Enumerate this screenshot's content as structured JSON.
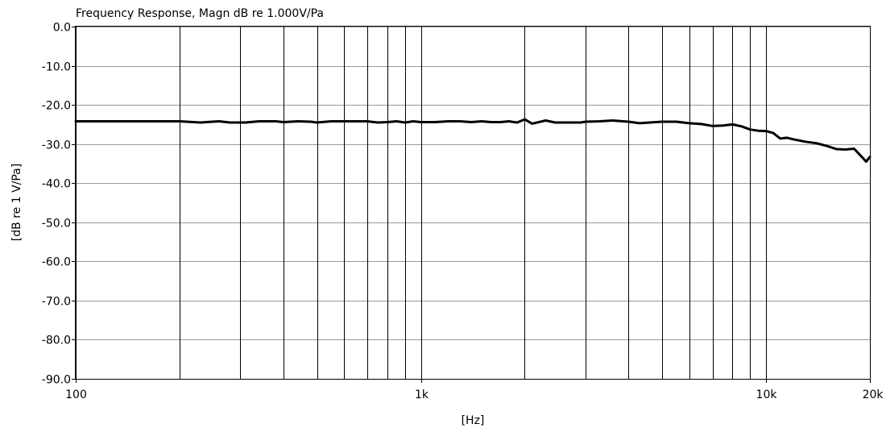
{
  "chart_data": {
    "type": "line",
    "title": "Frequency Response, Magn dB re 1.000V/Pa",
    "xlabel": "[Hz]",
    "ylabel": "[dB re 1 V/Pa]",
    "x_scale": "log",
    "xlim": [
      100,
      20000
    ],
    "ylim": [
      -90,
      0
    ],
    "grid": true,
    "x_ticks": [
      {
        "value": 100,
        "label": "100"
      },
      {
        "value": 1000,
        "label": "1k"
      },
      {
        "value": 10000,
        "label": "10k"
      },
      {
        "value": 20000,
        "label": "20k"
      }
    ],
    "x_minor": [
      200,
      300,
      400,
      500,
      600,
      700,
      800,
      900,
      2000,
      3000,
      4000,
      5000,
      6000,
      7000,
      8000,
      9000
    ],
    "y_ticks": [
      {
        "value": 0,
        "label": "0.0"
      },
      {
        "value": -10,
        "label": "-10.0"
      },
      {
        "value": -20,
        "label": "-20.0"
      },
      {
        "value": -30,
        "label": "-30.0"
      },
      {
        "value": -40,
        "label": "-40.0"
      },
      {
        "value": -50,
        "label": "-50.0"
      },
      {
        "value": -60,
        "label": "-60.0"
      },
      {
        "value": -70,
        "label": "-70.0"
      },
      {
        "value": -80,
        "label": "-80.0"
      },
      {
        "value": -90,
        "label": "-90.0"
      }
    ],
    "series": [
      {
        "color": "#000000",
        "x": [
          100,
          150,
          200,
          230,
          260,
          280,
          310,
          340,
          380,
          400,
          440,
          480,
          500,
          550,
          600,
          650,
          700,
          750,
          800,
          850,
          900,
          950,
          1000,
          1100,
          1200,
          1300,
          1400,
          1500,
          1600,
          1700,
          1800,
          1900,
          2000,
          2100,
          2300,
          2450,
          2600,
          2900,
          3000,
          3300,
          3600,
          4000,
          4300,
          4600,
          5000,
          5500,
          6000,
          6500,
          7000,
          7500,
          8000,
          8500,
          9000,
          9500,
          10000,
          10500,
          11000,
          11500,
          12000,
          13000,
          14000,
          15000,
          16000,
          17000,
          18000,
          19000,
          19500,
          20000
        ],
        "y": [
          -24.2,
          -24.2,
          -24.2,
          -24.5,
          -24.2,
          -24.5,
          -24.5,
          -24.2,
          -24.2,
          -24.4,
          -24.2,
          -24.3,
          -24.5,
          -24.2,
          -24.2,
          -24.2,
          -24.2,
          -24.5,
          -24.4,
          -24.2,
          -24.5,
          -24.2,
          -24.4,
          -24.4,
          -24.2,
          -24.2,
          -24.4,
          -24.2,
          -24.4,
          -24.4,
          -24.2,
          -24.5,
          -23.7,
          -24.8,
          -24.0,
          -24.5,
          -24.5,
          -24.5,
          -24.3,
          -24.2,
          -24.0,
          -24.3,
          -24.7,
          -24.5,
          -24.3,
          -24.3,
          -24.7,
          -24.9,
          -25.4,
          -25.3,
          -25.0,
          -25.5,
          -26.3,
          -26.6,
          -26.7,
          -27.2,
          -28.6,
          -28.4,
          -28.8,
          -29.4,
          -29.8,
          -30.5,
          -31.3,
          -31.4,
          -31.2,
          -33.4,
          -34.5,
          -33.3
        ]
      }
    ]
  }
}
